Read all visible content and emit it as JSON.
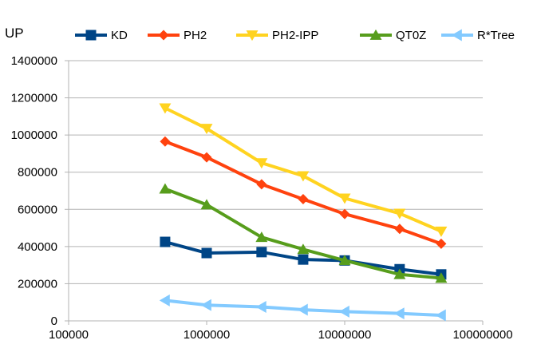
{
  "chart_data": {
    "type": "line",
    "title": "UP",
    "xlabel": "",
    "ylabel": "",
    "x_scale": "log",
    "xlim": [
      100000,
      100000000
    ],
    "ylim": [
      0,
      1400000
    ],
    "x_ticks": [
      "100000",
      "1000000",
      "10000000",
      "100000000"
    ],
    "y_ticks": [
      "0",
      "200000",
      "400000",
      "600000",
      "800000",
      "1000000",
      "1200000",
      "1400000"
    ],
    "grid": "horizontal",
    "legend_position": "top",
    "x": [
      500000,
      1000000,
      2500000,
      5000000,
      10000000,
      25000000,
      50000000
    ],
    "series": [
      {
        "name": "KD",
        "color": "#004586",
        "marker": "square",
        "values": [
          425000,
          365000,
          370000,
          330000,
          325000,
          278000,
          250000
        ]
      },
      {
        "name": "PH2",
        "color": "#ff420e",
        "marker": "diamond",
        "values": [
          965000,
          880000,
          735000,
          655000,
          575000,
          495000,
          415000
        ]
      },
      {
        "name": "PH2-IPP",
        "color": "#ffd320",
        "marker": "triangle-down",
        "values": [
          1145000,
          1035000,
          850000,
          780000,
          660000,
          578000,
          482000
        ]
      },
      {
        "name": "QT0Z",
        "color": "#579d1c",
        "marker": "triangle-up",
        "values": [
          710000,
          625000,
          450000,
          385000,
          325000,
          250000,
          230000
        ]
      },
      {
        "name": "R*Tree",
        "color": "#83caff",
        "marker": "triangle-left",
        "values": [
          110000,
          85000,
          75000,
          60000,
          50000,
          40000,
          30000
        ]
      }
    ]
  }
}
